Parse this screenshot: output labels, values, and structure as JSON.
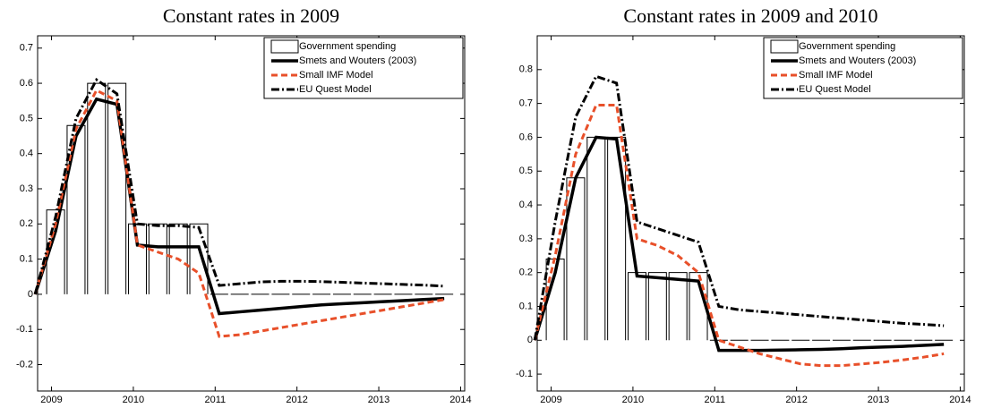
{
  "chart_data": [
    {
      "type": "combo",
      "title": "Constant rates in 2009",
      "x": [
        2008.8,
        2009.05,
        2009.3,
        2009.55,
        2009.8,
        2010.05,
        2010.3,
        2010.55,
        2010.8,
        2011.05,
        2011.3,
        2011.55,
        2011.8,
        2012.05,
        2012.3,
        2012.55,
        2012.8,
        2013.05,
        2013.3,
        2013.55,
        2013.8
      ],
      "xlim": [
        2008.83,
        2014.05
      ],
      "xticks": [
        2009,
        2010,
        2011,
        2012,
        2013,
        2014
      ],
      "ylim": [
        -0.275,
        0.735
      ],
      "yticks": [
        -0.2,
        -0.1,
        0,
        0.1,
        0.2,
        0.3,
        0.4,
        0.5,
        0.6,
        0.7
      ],
      "legend": "upper right",
      "series": [
        {
          "name": "Government spending",
          "kind": "bar",
          "color": "#000000",
          "values": [
            null,
            0.24,
            0.48,
            0.6,
            0.6,
            0.2,
            0.2,
            0.2,
            0.2,
            0,
            0,
            0,
            0,
            0,
            0,
            0,
            0,
            0,
            0,
            0,
            0
          ]
        },
        {
          "name": "Smets and Wouters (2003)",
          "kind": "line",
          "linestyle": "solid",
          "color": "#000000",
          "values": [
            0,
            0.18,
            0.45,
            0.555,
            0.54,
            0.14,
            0.135,
            0.135,
            0.135,
            -0.055,
            -0.05,
            -0.045,
            -0.04,
            -0.035,
            -0.03,
            -0.027,
            -0.024,
            -0.021,
            -0.018,
            -0.015,
            -0.012
          ]
        },
        {
          "name": "Small IMF Model",
          "kind": "line",
          "linestyle": "dashed",
          "color": "#e8502a",
          "values": [
            0,
            0.2,
            0.47,
            0.58,
            0.55,
            0.14,
            0.12,
            0.1,
            0.06,
            -0.12,
            -0.115,
            -0.105,
            -0.095,
            -0.085,
            -0.075,
            -0.065,
            -0.055,
            -0.045,
            -0.035,
            -0.025,
            -0.015
          ]
        },
        {
          "name": "EU Quest Model",
          "kind": "line",
          "linestyle": "dashdot",
          "color": "#000000",
          "values": [
            0,
            0.22,
            0.5,
            0.61,
            0.57,
            0.2,
            0.195,
            0.195,
            0.19,
            0.025,
            0.03,
            0.035,
            0.037,
            0.037,
            0.036,
            0.034,
            0.032,
            0.03,
            0.028,
            0.026,
            0.023
          ]
        }
      ]
    },
    {
      "type": "combo",
      "title": "Constant rates in 2009 and 2010",
      "x": [
        2008.8,
        2009.05,
        2009.3,
        2009.55,
        2009.8,
        2010.05,
        2010.3,
        2010.55,
        2010.8,
        2011.05,
        2011.3,
        2011.55,
        2011.8,
        2012.05,
        2012.3,
        2012.55,
        2012.8,
        2013.05,
        2013.3,
        2013.55,
        2013.8
      ],
      "xlim": [
        2008.83,
        2014.05
      ],
      "xticks": [
        2009,
        2010,
        2011,
        2012,
        2013,
        2014
      ],
      "ylim": [
        -0.15,
        0.9
      ],
      "yticks": [
        -0.1,
        0,
        0.1,
        0.2,
        0.3,
        0.4,
        0.5,
        0.6,
        0.7,
        0.8
      ],
      "legend": "upper right",
      "series": [
        {
          "name": "Government spending",
          "kind": "bar",
          "color": "#000000",
          "values": [
            null,
            0.24,
            0.48,
            0.6,
            0.6,
            0.2,
            0.2,
            0.2,
            0.2,
            0,
            0,
            0,
            0,
            0,
            0,
            0,
            0,
            0,
            0,
            0,
            0
          ]
        },
        {
          "name": "Smets and Wouters (2003)",
          "kind": "line",
          "linestyle": "solid",
          "color": "#000000",
          "values": [
            0,
            0.2,
            0.48,
            0.6,
            0.595,
            0.19,
            0.185,
            0.18,
            0.175,
            -0.03,
            -0.03,
            -0.03,
            -0.029,
            -0.028,
            -0.027,
            -0.025,
            -0.022,
            -0.02,
            -0.018,
            -0.015,
            -0.012
          ]
        },
        {
          "name": "Small IMF Model",
          "kind": "line",
          "linestyle": "dashed",
          "color": "#e8502a",
          "values": [
            0,
            0.25,
            0.55,
            0.695,
            0.695,
            0.3,
            0.28,
            0.25,
            0.2,
            0.0,
            -0.02,
            -0.04,
            -0.055,
            -0.07,
            -0.075,
            -0.075,
            -0.07,
            -0.065,
            -0.058,
            -0.05,
            -0.04
          ]
        },
        {
          "name": "EU Quest Model",
          "kind": "line",
          "linestyle": "dashdot",
          "color": "#000000",
          "values": [
            0,
            0.35,
            0.66,
            0.78,
            0.76,
            0.35,
            0.33,
            0.31,
            0.29,
            0.1,
            0.09,
            0.085,
            0.08,
            0.075,
            0.07,
            0.065,
            0.06,
            0.055,
            0.05,
            0.047,
            0.043
          ]
        }
      ]
    }
  ]
}
